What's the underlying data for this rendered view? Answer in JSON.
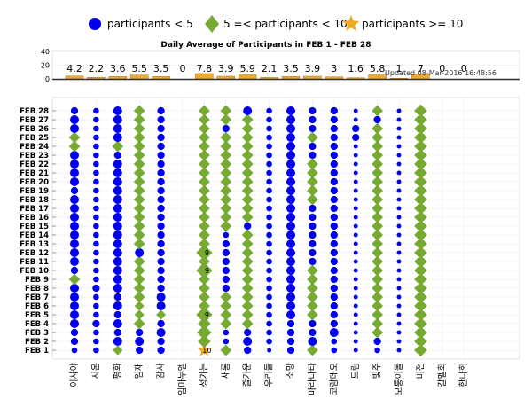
{
  "chart_data": {
    "type": "scatter",
    "title": "Daily Average of Participants in FEB 1 - FEB 28",
    "updated": "Updated 08-Mar-2016 16:48:56",
    "legend": {
      "placement": "top",
      "entries": [
        {
          "label": "participants < 5",
          "marker": "circle",
          "color": "#0000ee"
        },
        {
          "label": "5 =< participants < 10",
          "marker": "diamond",
          "color": "#77aa33"
        },
        {
          "label": "participants >= 10",
          "marker": "star",
          "color": "#eeaa22"
        }
      ]
    },
    "bar_chart": {
      "type": "bar",
      "ylim": [
        0,
        40
      ],
      "yticks": [
        0,
        20,
        40
      ],
      "bar_color": "#eeaa33",
      "values": [
        4.2,
        2.2,
        3.6,
        5.5,
        3.5,
        0,
        7.8,
        3.9,
        5.9,
        2.1,
        3.5,
        3.9,
        3,
        1.6,
        5.8,
        1,
        7,
        0,
        0
      ],
      "labels": [
        "4.2",
        "2.2",
        "3.6",
        "5.5",
        "3.5",
        "0",
        "7.8",
        "3.9",
        "5.9",
        "2.1",
        "3.5",
        "3.9",
        "3",
        "1.6",
        "5.8",
        "1",
        "7",
        "0",
        "0"
      ]
    },
    "categories": [
      "이사야",
      "시온",
      "평화",
      "임재",
      "감사",
      "임마누엘",
      "성가는",
      "새롬",
      "즐거운",
      "우리들",
      "소망",
      "마라나타",
      "코람데오",
      "드림",
      "빛주",
      "모퉁이돌",
      "비전",
      "갈멜회",
      "한나회"
    ],
    "days": [
      "FEB 1",
      "FEB 2",
      "FEB 3",
      "FEB 4",
      "FEB 5",
      "FEB 6",
      "FEB 7",
      "FEB 8",
      "FEB 9",
      "FEB 10",
      "FEB 11",
      "FEB 12",
      "FEB 13",
      "FEB 14",
      "FEB 15",
      "FEB 16",
      "FEB 17",
      "FEB 18",
      "FEB 19",
      "FEB 20",
      "FEB 21",
      "FEB 22",
      "FEB 23",
      "FEB 24",
      "FEB 25",
      "FEB 26",
      "FEB 27",
      "FEB 28"
    ],
    "values": [
      [
        2,
        2,
        5,
        3,
        3,
        0,
        10,
        6,
        3,
        1,
        3,
        6,
        2,
        1,
        2,
        1,
        7,
        0,
        0
      ],
      [
        3,
        2,
        4,
        4,
        3,
        0,
        7,
        2,
        4,
        2,
        3,
        4,
        2,
        1,
        3,
        1,
        7,
        0,
        0
      ],
      [
        3,
        2,
        3,
        3,
        4,
        0,
        8,
        2,
        3,
        2,
        3,
        3,
        4,
        1,
        6,
        1,
        7,
        0,
        0
      ],
      [
        4,
        3,
        4,
        6,
        3,
        0,
        7,
        6,
        6,
        2,
        3,
        3,
        3,
        1,
        6,
        1,
        7,
        0,
        0
      ],
      [
        4,
        2,
        3,
        5,
        5,
        0,
        9,
        6,
        6,
        2,
        4,
        6,
        3,
        1,
        6,
        1,
        7,
        0,
        0
      ],
      [
        4,
        2,
        4,
        5,
        4,
        0,
        6,
        6,
        6,
        2,
        4,
        6,
        3,
        1,
        6,
        1,
        7,
        0,
        0
      ],
      [
        4,
        2,
        3,
        6,
        4,
        0,
        6,
        6,
        6,
        2,
        4,
        6,
        3,
        1,
        6,
        1,
        7,
        0,
        0
      ],
      [
        4,
        3,
        4,
        6,
        3,
        0,
        6,
        3,
        6,
        2,
        4,
        6,
        3,
        1,
        6,
        1,
        7,
        0,
        0
      ],
      [
        6,
        2,
        4,
        6,
        3,
        0,
        6,
        3,
        6,
        2,
        4,
        6,
        3,
        1,
        6,
        1,
        7,
        0,
        0
      ],
      [
        3,
        2,
        4,
        6,
        3,
        0,
        9,
        3,
        6,
        2,
        4,
        6,
        3,
        1,
        6,
        1,
        7,
        0,
        0
      ],
      [
        4,
        2,
        4,
        6,
        3,
        0,
        6,
        3,
        6,
        2,
        4,
        3,
        3,
        1,
        6,
        1,
        7,
        0,
        0
      ],
      [
        4,
        2,
        4,
        4,
        3,
        0,
        9,
        3,
        6,
        2,
        4,
        3,
        3,
        1,
        6,
        1,
        7,
        0,
        0
      ],
      [
        4,
        2,
        4,
        6,
        3,
        0,
        6,
        3,
        6,
        2,
        4,
        3,
        3,
        1,
        6,
        1,
        7,
        0,
        0
      ],
      [
        4,
        2,
        4,
        6,
        3,
        0,
        6,
        2,
        6,
        2,
        4,
        3,
        3,
        1,
        6,
        1,
        7,
        0,
        0
      ],
      [
        4,
        2,
        4,
        6,
        3,
        0,
        6,
        6,
        3,
        2,
        4,
        3,
        3,
        1,
        6,
        1,
        7,
        0,
        0
      ],
      [
        4,
        2,
        4,
        6,
        3,
        0,
        6,
        6,
        6,
        2,
        4,
        3,
        3,
        1,
        6,
        1,
        7,
        0,
        0
      ],
      [
        4,
        2,
        4,
        6,
        3,
        0,
        6,
        6,
        6,
        2,
        4,
        3,
        3,
        1,
        6,
        1,
        7,
        0,
        0
      ],
      [
        4,
        2,
        4,
        6,
        3,
        0,
        6,
        6,
        6,
        2,
        4,
        6,
        3,
        1,
        6,
        1,
        7,
        0,
        0
      ],
      [
        3,
        2,
        4,
        6,
        3,
        0,
        6,
        6,
        6,
        2,
        4,
        6,
        3,
        1,
        6,
        1,
        7,
        0,
        0
      ],
      [
        4,
        2,
        4,
        6,
        3,
        0,
        6,
        6,
        6,
        2,
        4,
        6,
        3,
        1,
        6,
        1,
        7,
        0,
        0
      ],
      [
        4,
        2,
        4,
        6,
        3,
        0,
        6,
        6,
        6,
        2,
        4,
        6,
        3,
        1,
        6,
        1,
        7,
        0,
        0
      ],
      [
        4,
        2,
        4,
        6,
        3,
        0,
        6,
        6,
        6,
        2,
        4,
        6,
        3,
        1,
        6,
        1,
        7,
        0,
        0
      ],
      [
        4,
        2,
        3,
        6,
        3,
        0,
        6,
        6,
        6,
        2,
        4,
        3,
        3,
        1,
        6,
        1,
        7,
        0,
        0
      ],
      [
        6,
        2,
        6,
        6,
        3,
        0,
        6,
        6,
        6,
        2,
        4,
        3,
        3,
        1,
        6,
        1,
        7,
        0,
        0
      ],
      [
        6,
        2,
        4,
        6,
        3,
        0,
        6,
        6,
        6,
        2,
        4,
        6,
        3,
        3,
        6,
        1,
        7,
        0,
        0
      ],
      [
        4,
        2,
        4,
        6,
        3,
        0,
        6,
        3,
        6,
        2,
        4,
        3,
        3,
        3,
        6,
        1,
        7,
        0,
        0
      ],
      [
        4,
        2,
        4,
        6,
        3,
        0,
        6,
        6,
        6,
        2,
        4,
        3,
        3,
        1,
        3,
        1,
        7,
        0,
        0
      ],
      [
        3,
        2,
        4,
        6,
        3,
        0,
        6,
        6,
        4,
        2,
        4,
        3,
        3,
        1,
        6,
        1,
        7,
        0,
        0
      ]
    ],
    "cell_labels": [
      {
        "category": "성가는",
        "day": "FEB 1",
        "text": "10"
      },
      {
        "category": "성가는",
        "day": "FEB 5",
        "text": "9"
      },
      {
        "category": "성가는",
        "day": "FEB 10",
        "text": "9"
      },
      {
        "category": "성가는",
        "day": "FEB 12",
        "text": "9"
      }
    ]
  }
}
